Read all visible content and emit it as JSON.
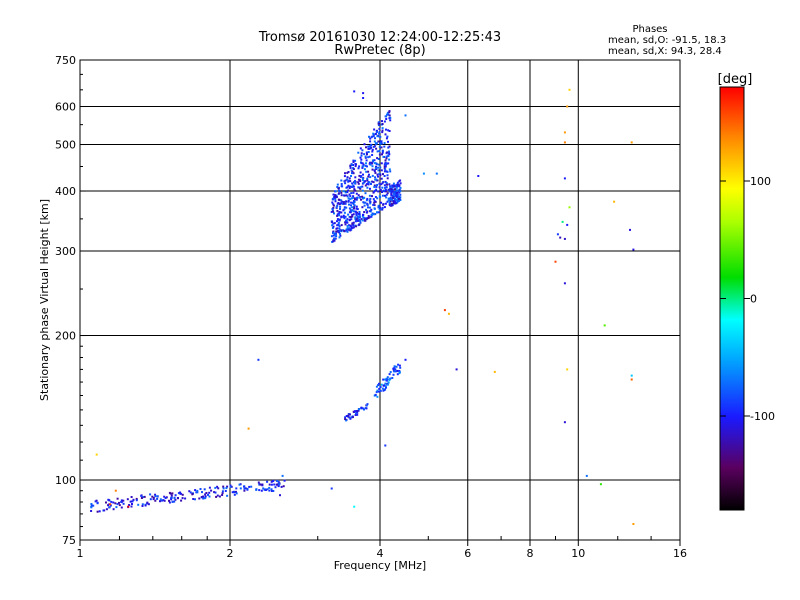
{
  "chart_data": {
    "type": "scatter",
    "title": "Tromsø 20161030 12:24:00-12:25:43",
    "subtitle": "RwPretec (8p)",
    "xlabel": "Frequency [MHz]",
    "ylabel": "Stationary phase Virtual Height [km]",
    "x_scale": "log",
    "y_scale": "log",
    "xlim": [
      1,
      16
    ],
    "ylim": [
      75,
      750
    ],
    "grid": true,
    "x_ticks": [
      1,
      2,
      4,
      6,
      8,
      10,
      16
    ],
    "y_ticks": [
      75,
      100,
      200,
      300,
      400,
      500,
      600,
      750
    ],
    "phase_stats": {
      "heading": "Phases",
      "o_line": "mean, sd,O: -91.5, 18.3",
      "x_line": "mean, sd,X:  94.3, 28.4"
    },
    "colorbar": {
      "label": "[deg]",
      "ticks": [
        100,
        0,
        -100
      ],
      "range": [
        -180,
        180
      ]
    },
    "clusters": [
      {
        "name_hint": "E-region trace",
        "x_range": [
          1.05,
          2.6
        ],
        "y_range": [
          86,
          104
        ],
        "count": 220,
        "phase": -100
      },
      {
        "name_hint": "F-trace lower",
        "x_range": [
          3.4,
          3.8
        ],
        "y_range": [
          132,
          145
        ],
        "count": 40,
        "phase": -95
      },
      {
        "name_hint": "F-trace upper",
        "x_range": [
          3.9,
          4.4
        ],
        "y_range": [
          145,
          178
        ],
        "count": 60,
        "phase": -80
      },
      {
        "name_hint": "F2 echoes",
        "x_range": [
          3.2,
          4.4
        ],
        "y_range": [
          310,
          540
        ],
        "count": 800,
        "phase": -95
      }
    ],
    "points": [
      [
        3.55,
        645,
        -100
      ],
      [
        3.7,
        640,
        -105
      ],
      [
        3.7,
        625,
        -100
      ],
      [
        4.5,
        575,
        -70
      ],
      [
        9.6,
        650,
        110
      ],
      [
        9.5,
        600,
        130
      ],
      [
        9.4,
        530,
        130
      ],
      [
        12.8,
        505,
        130
      ],
      [
        9.4,
        505,
        140
      ],
      [
        4.9,
        435,
        -60
      ],
      [
        5.2,
        435,
        -70
      ],
      [
        6.3,
        430,
        -100
      ],
      [
        9.4,
        425,
        -100
      ],
      [
        9.6,
        370,
        60
      ],
      [
        11.8,
        380,
        120
      ],
      [
        9.3,
        345,
        0
      ],
      [
        9.5,
        340,
        -100
      ],
      [
        9.1,
        325,
        -90
      ],
      [
        9.2,
        320,
        -120
      ],
      [
        9.4,
        318,
        -115
      ],
      [
        12.7,
        332,
        -110
      ],
      [
        12.9,
        302,
        -110
      ],
      [
        9.0,
        285,
        160
      ],
      [
        9.4,
        257,
        -110
      ],
      [
        5.4,
        226,
        160
      ],
      [
        5.5,
        222,
        120
      ],
      [
        11.3,
        210,
        40
      ],
      [
        2.28,
        178,
        -90
      ],
      [
        4.5,
        178,
        -100
      ],
      [
        5.7,
        170,
        -110
      ],
      [
        6.8,
        168,
        120
      ],
      [
        9.5,
        170,
        110
      ],
      [
        12.8,
        165,
        -40
      ],
      [
        12.8,
        162,
        150
      ],
      [
        9.4,
        132,
        -110
      ],
      [
        2.18,
        128,
        130
      ],
      [
        4.1,
        118,
        -90
      ],
      [
        1.08,
        113,
        110
      ],
      [
        10.4,
        102,
        -70
      ],
      [
        11.1,
        98,
        30
      ],
      [
        2.55,
        102,
        -70
      ],
      [
        3.2,
        96,
        -90
      ],
      [
        2.52,
        93,
        -110
      ],
      [
        3.55,
        88,
        -20
      ],
      [
        12.9,
        81,
        130
      ],
      [
        1.15,
        89,
        160
      ],
      [
        1.25,
        88,
        180
      ],
      [
        1.18,
        95,
        140
      ]
    ]
  }
}
